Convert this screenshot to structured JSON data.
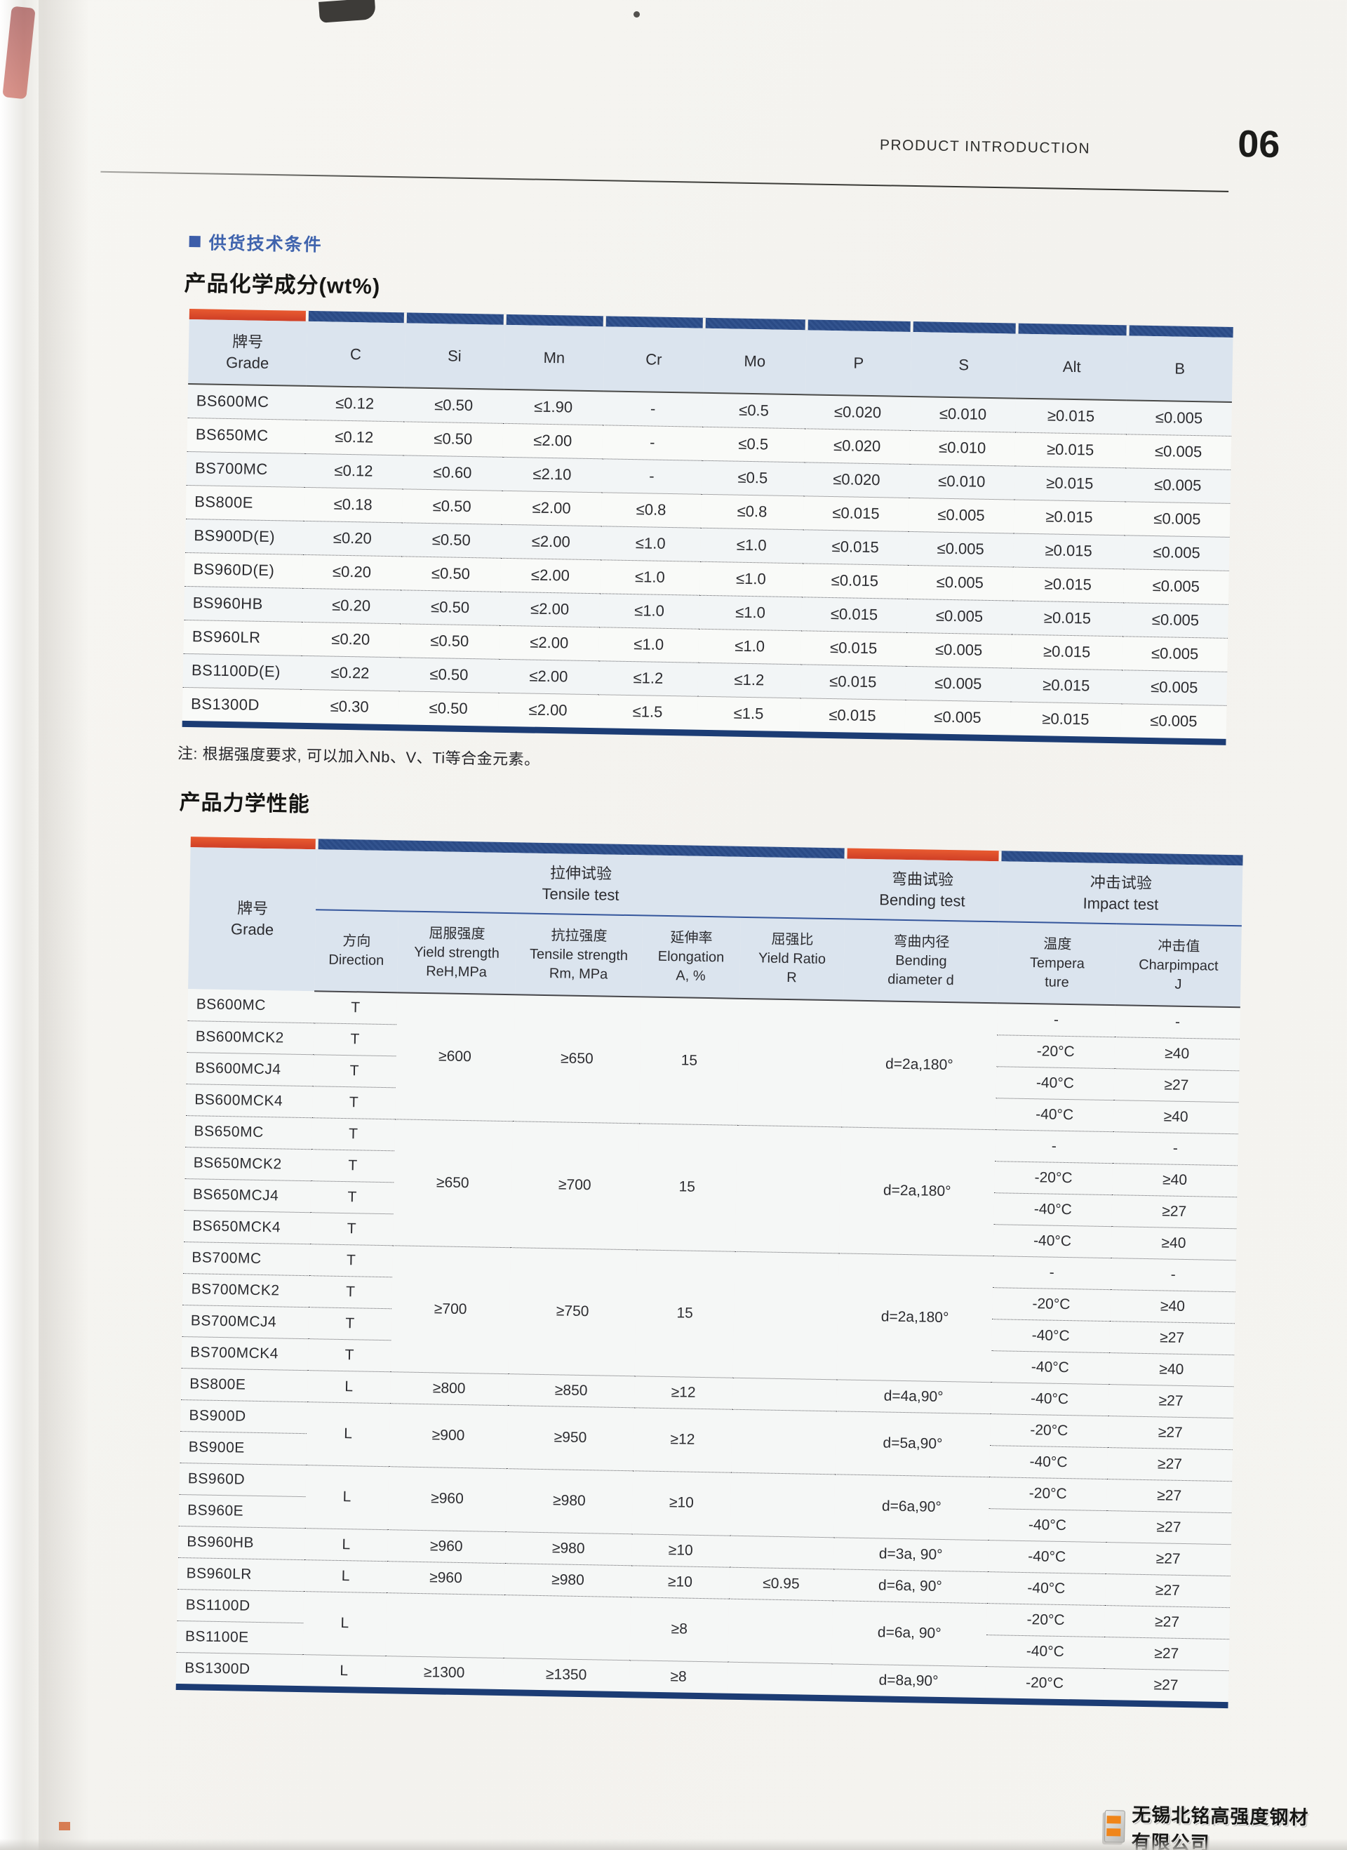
{
  "header": {
    "title": "PRODUCT INTRODUCTION",
    "page_number": "06"
  },
  "section_label": "供货技术条件",
  "colors": {
    "accent_orange": "#d9472b",
    "accent_navy": "#2c4c86",
    "header_bg": "#dbe4ee"
  },
  "footer": {
    "company": "无锡北铭高强度钢材有限公司"
  },
  "chem_table": {
    "title": "产品化学成分(wt%)",
    "grade_zh": "牌号",
    "grade_en": "Grade",
    "columns": [
      "C",
      "Si",
      "Mn",
      "Cr",
      "Mo",
      "P",
      "S",
      "Alt",
      "B"
    ],
    "rows": [
      {
        "grade": "BS600MC",
        "values": [
          "≤0.12",
          "≤0.50",
          "≤1.90",
          "-",
          "≤0.5",
          "≤0.020",
          "≤0.010",
          "≥0.015",
          "≤0.005"
        ]
      },
      {
        "grade": "BS650MC",
        "values": [
          "≤0.12",
          "≤0.50",
          "≤2.00",
          "-",
          "≤0.5",
          "≤0.020",
          "≤0.010",
          "≥0.015",
          "≤0.005"
        ]
      },
      {
        "grade": "BS700MC",
        "values": [
          "≤0.12",
          "≤0.60",
          "≤2.10",
          "-",
          "≤0.5",
          "≤0.020",
          "≤0.010",
          "≥0.015",
          "≤0.005"
        ]
      },
      {
        "grade": "BS800E",
        "values": [
          "≤0.18",
          "≤0.50",
          "≤2.00",
          "≤0.8",
          "≤0.8",
          "≤0.015",
          "≤0.005",
          "≥0.015",
          "≤0.005"
        ]
      },
      {
        "grade": "BS900D(E)",
        "values": [
          "≤0.20",
          "≤0.50",
          "≤2.00",
          "≤1.0",
          "≤1.0",
          "≤0.015",
          "≤0.005",
          "≥0.015",
          "≤0.005"
        ]
      },
      {
        "grade": "BS960D(E)",
        "values": [
          "≤0.20",
          "≤0.50",
          "≤2.00",
          "≤1.0",
          "≤1.0",
          "≤0.015",
          "≤0.005",
          "≥0.015",
          "≤0.005"
        ]
      },
      {
        "grade": "BS960HB",
        "values": [
          "≤0.20",
          "≤0.50",
          "≤2.00",
          "≤1.0",
          "≤1.0",
          "≤0.015",
          "≤0.005",
          "≥0.015",
          "≤0.005"
        ]
      },
      {
        "grade": "BS960LR",
        "values": [
          "≤0.20",
          "≤0.50",
          "≤2.00",
          "≤1.0",
          "≤1.0",
          "≤0.015",
          "≤0.005",
          "≥0.015",
          "≤0.005"
        ]
      },
      {
        "grade": "BS1100D(E)",
        "values": [
          "≤0.22",
          "≤0.50",
          "≤2.00",
          "≤1.2",
          "≤1.2",
          "≤0.015",
          "≤0.005",
          "≥0.015",
          "≤0.005"
        ]
      },
      {
        "grade": "BS1300D",
        "values": [
          "≤0.30",
          "≤0.50",
          "≤2.00",
          "≤1.5",
          "≤1.5",
          "≤0.015",
          "≤0.005",
          "≥0.015",
          "≤0.005"
        ]
      }
    ],
    "note": "注: 根据强度要求, 可以加入Nb、V、Ti等合金元素。"
  },
  "mech_table": {
    "title": "产品力学性能",
    "grade_zh": "牌号",
    "grade_en": "Grade",
    "groups": {
      "tensile_zh": "拉伸试验",
      "tensile_en": "Tensile test",
      "bending_zh": "弯曲试验",
      "bending_en": "Bending test",
      "impact_zh": "冲击试验",
      "impact_en": "Impact test"
    },
    "subcolumns": [
      {
        "zh": "方向",
        "en": "Direction",
        "unit": ""
      },
      {
        "zh": "屈服强度",
        "en": "Yield strength",
        "unit": "ReH,MPa"
      },
      {
        "zh": "抗拉强度",
        "en": "Tensile strength",
        "unit": "Rm, MPa"
      },
      {
        "zh": "延伸率",
        "en": "Elongation",
        "unit": "A, %"
      },
      {
        "zh": "屈强比",
        "en": "Yield Ratio",
        "unit": "R"
      },
      {
        "zh": "弯曲内径",
        "en": "Bending",
        "unit": "diameter d"
      },
      {
        "zh": "温度",
        "en": "Tempera",
        "unit": "ture"
      },
      {
        "zh": "冲击值",
        "en": "Charpimpact",
        "unit": "J"
      }
    ],
    "rows": [
      {
        "grade": "BS600MC",
        "cells": [
          {
            "v": "T"
          },
          {
            "v": "≥600",
            "rs": 4
          },
          {
            "v": "≥650",
            "rs": 4
          },
          {
            "v": "15",
            "rs": 4
          },
          {
            "v": "",
            "rs": 4
          },
          {
            "v": "d=2a,180°",
            "rs": 4
          },
          {
            "v": "-"
          },
          {
            "v": "-"
          }
        ]
      },
      {
        "grade": "BS600MCK2",
        "cells": [
          {
            "v": "T"
          },
          {
            "v": "-20°C"
          },
          {
            "v": "≥40"
          }
        ]
      },
      {
        "grade": "BS600MCJ4",
        "cells": [
          {
            "v": "T"
          },
          {
            "v": "-40°C"
          },
          {
            "v": "≥27"
          }
        ]
      },
      {
        "grade": "BS600MCK4",
        "cells": [
          {
            "v": "T"
          },
          {
            "v": "-40°C"
          },
          {
            "v": "≥40"
          }
        ]
      },
      {
        "grade": "BS650MC",
        "cells": [
          {
            "v": "T"
          },
          {
            "v": "≥650",
            "rs": 4
          },
          {
            "v": "≥700",
            "rs": 4
          },
          {
            "v": "15",
            "rs": 4
          },
          {
            "v": "",
            "rs": 4
          },
          {
            "v": "d=2a,180°",
            "rs": 4
          },
          {
            "v": "-"
          },
          {
            "v": "-"
          }
        ]
      },
      {
        "grade": "BS650MCK2",
        "cells": [
          {
            "v": "T"
          },
          {
            "v": "-20°C"
          },
          {
            "v": "≥40"
          }
        ]
      },
      {
        "grade": "BS650MCJ4",
        "cells": [
          {
            "v": "T"
          },
          {
            "v": "-40°C"
          },
          {
            "v": "≥27"
          }
        ]
      },
      {
        "grade": "BS650MCK4",
        "cells": [
          {
            "v": "T"
          },
          {
            "v": "-40°C"
          },
          {
            "v": "≥40"
          }
        ]
      },
      {
        "grade": "BS700MC",
        "cells": [
          {
            "v": "T"
          },
          {
            "v": "≥700",
            "rs": 4
          },
          {
            "v": "≥750",
            "rs": 4
          },
          {
            "v": "15",
            "rs": 4
          },
          {
            "v": "",
            "rs": 4
          },
          {
            "v": "d=2a,180°",
            "rs": 4
          },
          {
            "v": "-"
          },
          {
            "v": "-"
          }
        ]
      },
      {
        "grade": "BS700MCK2",
        "cells": [
          {
            "v": "T"
          },
          {
            "v": "-20°C"
          },
          {
            "v": "≥40"
          }
        ]
      },
      {
        "grade": "BS700MCJ4",
        "cells": [
          {
            "v": "T"
          },
          {
            "v": "-40°C"
          },
          {
            "v": "≥27"
          }
        ]
      },
      {
        "grade": "BS700MCK4",
        "cells": [
          {
            "v": "T"
          },
          {
            "v": "-40°C"
          },
          {
            "v": "≥40"
          }
        ]
      },
      {
        "grade": "BS800E",
        "cells": [
          {
            "v": "L"
          },
          {
            "v": "≥800"
          },
          {
            "v": "≥850"
          },
          {
            "v": "≥12"
          },
          {
            "v": ""
          },
          {
            "v": "d=4a,90°"
          },
          {
            "v": "-40°C"
          },
          {
            "v": "≥27"
          }
        ]
      },
      {
        "grade": "BS900D",
        "cells": [
          {
            "v": "L",
            "rs": 2
          },
          {
            "v": "≥900",
            "rs": 2
          },
          {
            "v": "≥950",
            "rs": 2
          },
          {
            "v": "≥12",
            "rs": 2
          },
          {
            "v": "",
            "rs": 2
          },
          {
            "v": "d=5a,90°",
            "rs": 2
          },
          {
            "v": "-20°C"
          },
          {
            "v": "≥27"
          }
        ]
      },
      {
        "grade": "BS900E",
        "cells": [
          {
            "v": "-40°C"
          },
          {
            "v": "≥27"
          }
        ]
      },
      {
        "grade": "BS960D",
        "cells": [
          {
            "v": "L",
            "rs": 2
          },
          {
            "v": "≥960",
            "rs": 2
          },
          {
            "v": "≥980",
            "rs": 2
          },
          {
            "v": "≥10",
            "rs": 2
          },
          {
            "v": "",
            "rs": 2
          },
          {
            "v": "d=6a,90°",
            "rs": 2
          },
          {
            "v": "-20°C"
          },
          {
            "v": "≥27"
          }
        ]
      },
      {
        "grade": "BS960E",
        "cells": [
          {
            "v": "-40°C"
          },
          {
            "v": "≥27"
          }
        ]
      },
      {
        "grade": "BS960HB",
        "cells": [
          {
            "v": "L"
          },
          {
            "v": "≥960"
          },
          {
            "v": "≥980"
          },
          {
            "v": "≥10"
          },
          {
            "v": ""
          },
          {
            "v": "d=3a, 90°"
          },
          {
            "v": "-40°C"
          },
          {
            "v": "≥27"
          }
        ]
      },
      {
        "grade": "BS960LR",
        "cells": [
          {
            "v": "L"
          },
          {
            "v": "≥960"
          },
          {
            "v": "≥980"
          },
          {
            "v": "≥10"
          },
          {
            "v": "≤0.95"
          },
          {
            "v": "d=6a, 90°"
          },
          {
            "v": "-40°C"
          },
          {
            "v": "≥27"
          }
        ]
      },
      {
        "grade": "BS1100D",
        "cells": [
          {
            "v": "L",
            "rs": 2
          },
          {
            "v": "",
            "rs": 2
          },
          {
            "v": "",
            "rs": 2
          },
          {
            "v": "≥8",
            "rs": 2
          },
          {
            "v": "",
            "rs": 2
          },
          {
            "v": "d=6a, 90°",
            "rs": 2
          },
          {
            "v": "-20°C"
          },
          {
            "v": "≥27"
          }
        ]
      },
      {
        "grade": "BS1100E",
        "cells": [
          {
            "v": "-40°C"
          },
          {
            "v": "≥27"
          }
        ]
      },
      {
        "grade": "BS1300D",
        "cells": [
          {
            "v": "L"
          },
          {
            "v": "≥1300"
          },
          {
            "v": "≥1350"
          },
          {
            "v": "≥8"
          },
          {
            "v": ""
          },
          {
            "v": "d=8a,90°"
          },
          {
            "v": "-20°C"
          },
          {
            "v": "≥27"
          }
        ]
      }
    ]
  }
}
